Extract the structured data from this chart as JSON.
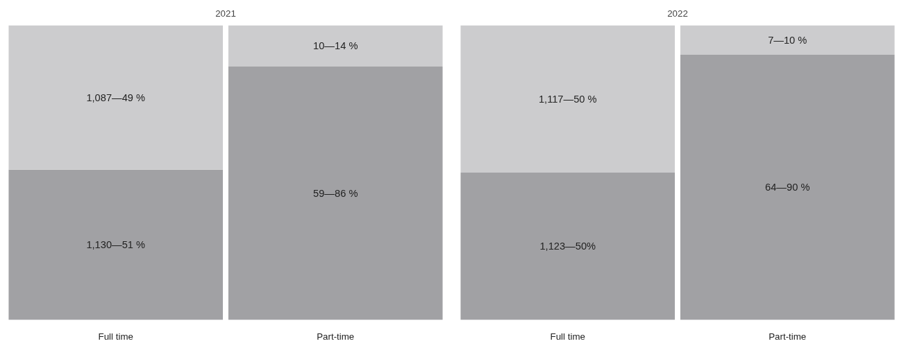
{
  "chart_data": [
    {
      "type": "bar",
      "title": "2021",
      "categories": [
        "Full time",
        "Part-time"
      ],
      "stacked": true,
      "tick_labels": "x",
      "series": [
        {
          "color": "#a1a1a4",
          "values": [
            51,
            86
          ],
          "value_labels": [
            "1,130—51 %",
            "59—86 %"
          ]
        },
        {
          "color": "#ccccce",
          "values": [
            49,
            14
          ],
          "value_labels": [
            "1,087—49 %",
            "10—14 %"
          ]
        }
      ]
    },
    {
      "type": "bar",
      "title": "2022",
      "categories": [
        "Full time",
        "Part-time"
      ],
      "stacked": true,
      "tick_labels": "x",
      "series": [
        {
          "color": "#a1a1a4",
          "values": [
            50,
            90
          ],
          "value_labels": [
            "1,123—50%",
            "64—90 %"
          ]
        },
        {
          "color": "#ccccce",
          "values": [
            50,
            10
          ],
          "value_labels": [
            "1,117—50 %",
            "7—10 %"
          ]
        }
      ]
    }
  ]
}
